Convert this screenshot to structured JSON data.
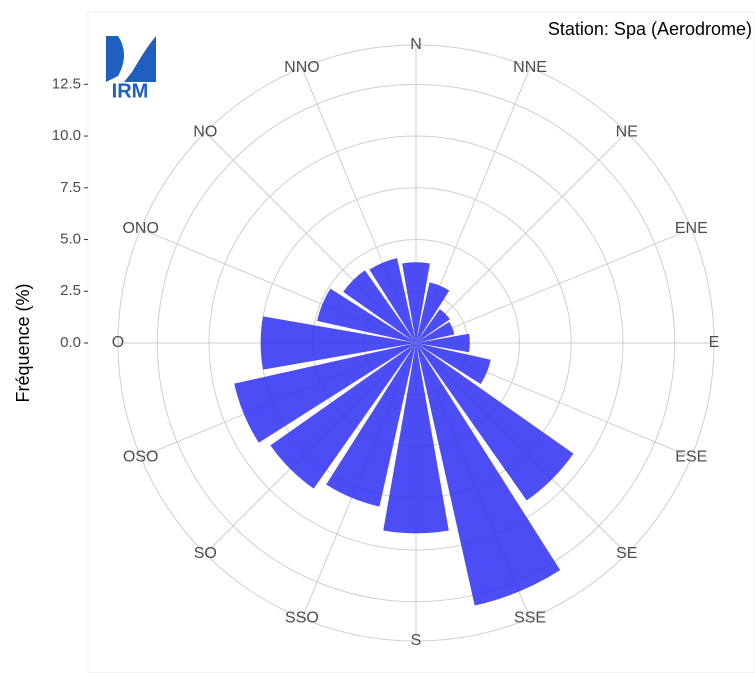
{
  "chart_data": {
    "type": "polar_bar",
    "title": "Station: Spa (Aerodrome)",
    "ylabel": "Fréquence (%)",
    "logo_text": "IRM",
    "categories": [
      "N",
      "NNE",
      "NE",
      "ENE",
      "E",
      "ESE",
      "SE",
      "SSE",
      "S",
      "SSO",
      "SO",
      "OSO",
      "O",
      "ONO",
      "NO",
      "NNO"
    ],
    "values": [
      3.9,
      3.0,
      2.0,
      1.9,
      2.6,
      3.7,
      9.3,
      13.0,
      9.2,
      8.1,
      8.6,
      9.0,
      7.5,
      4.9,
      4.3,
      4.2
    ],
    "color": "#3a3af5",
    "ylim": [
      0,
      14.4
    ],
    "yticks": [
      {
        "value": 0,
        "label": "0.0"
      },
      {
        "value": 2.5,
        "label": "2.5"
      },
      {
        "value": 5,
        "label": "5.0"
      },
      {
        "value": 7.5,
        "label": "7.5"
      },
      {
        "value": 10,
        "label": "10.0"
      },
      {
        "value": 12.5,
        "label": "12.5"
      }
    ],
    "grid": true
  }
}
